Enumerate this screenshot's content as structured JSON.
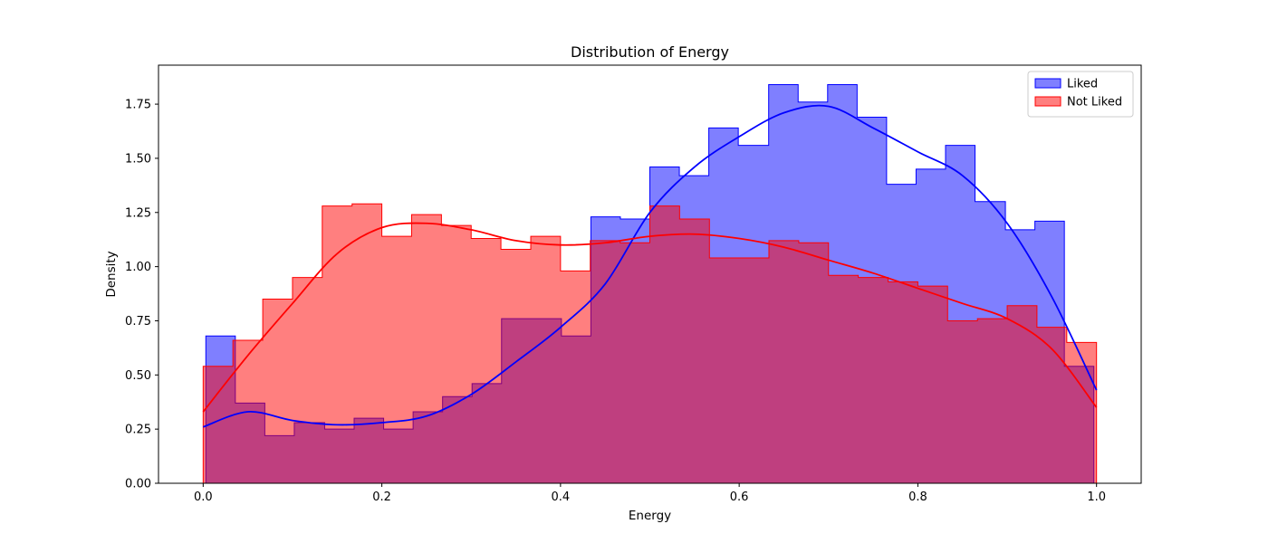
{
  "chart_data": {
    "type": "histogram",
    "title": "Distribution of Energy",
    "xlabel": "Energy",
    "ylabel": "Density",
    "xlim": [
      -0.05,
      1.05
    ],
    "ylim": [
      0,
      1.93
    ],
    "xticks": [
      0.0,
      0.2,
      0.4,
      0.6,
      0.8,
      1.0
    ],
    "xtick_labels": [
      "0.0",
      "0.2",
      "0.4",
      "0.6",
      "0.8",
      "1.0"
    ],
    "yticks": [
      0.0,
      0.25,
      0.5,
      0.75,
      1.0,
      1.25,
      1.5,
      1.75
    ],
    "ytick_labels": [
      "0.00",
      "0.25",
      "0.50",
      "0.75",
      "1.00",
      "1.25",
      "1.50",
      "1.75"
    ],
    "grid": false,
    "legend_position": "top-right",
    "series": [
      {
        "name": "Liked",
        "color": "#0000ff",
        "fill_opacity": 0.5,
        "bin_edges": [
          0.003,
          0.036,
          0.069,
          0.102,
          0.136,
          0.169,
          0.202,
          0.235,
          0.268,
          0.301,
          0.334,
          0.367,
          0.401,
          0.434,
          0.467,
          0.5,
          0.533,
          0.566,
          0.599,
          0.633,
          0.666,
          0.699,
          0.732,
          0.765,
          0.798,
          0.831,
          0.864,
          0.898,
          0.931,
          0.964,
          0.997
        ],
        "density": [
          0.68,
          0.37,
          0.22,
          0.28,
          0.25,
          0.3,
          0.25,
          0.33,
          0.4,
          0.46,
          0.76,
          0.76,
          0.68,
          1.23,
          1.22,
          1.46,
          1.42,
          1.64,
          1.56,
          1.84,
          1.76,
          1.84,
          1.69,
          1.38,
          1.45,
          1.56,
          1.3,
          1.17,
          1.21,
          0.54
        ],
        "kde_x": [
          0.0,
          0.05,
          0.1,
          0.15,
          0.2,
          0.25,
          0.3,
          0.35,
          0.4,
          0.45,
          0.5,
          0.55,
          0.6,
          0.65,
          0.7,
          0.75,
          0.8,
          0.85,
          0.9,
          0.95,
          1.0
        ],
        "kde_y": [
          0.26,
          0.33,
          0.29,
          0.27,
          0.28,
          0.31,
          0.41,
          0.56,
          0.72,
          0.92,
          1.25,
          1.46,
          1.6,
          1.71,
          1.74,
          1.64,
          1.53,
          1.42,
          1.2,
          0.86,
          0.43
        ]
      },
      {
        "name": "Not Liked",
        "color": "#ff0000",
        "fill_opacity": 0.5,
        "bin_edges": [
          0.0,
          0.0333,
          0.0667,
          0.1,
          0.1333,
          0.1667,
          0.2,
          0.2333,
          0.2667,
          0.3,
          0.3333,
          0.3667,
          0.4,
          0.4333,
          0.4667,
          0.5,
          0.5333,
          0.5667,
          0.6,
          0.6333,
          0.6667,
          0.7,
          0.7333,
          0.7667,
          0.8,
          0.8333,
          0.8667,
          0.9,
          0.9333,
          0.9667,
          1.0
        ],
        "density": [
          0.54,
          0.66,
          0.85,
          0.95,
          1.28,
          1.29,
          1.14,
          1.24,
          1.19,
          1.13,
          1.08,
          1.14,
          0.98,
          1.12,
          1.11,
          1.28,
          1.22,
          1.04,
          1.04,
          1.12,
          1.11,
          0.96,
          0.95,
          0.93,
          0.91,
          0.75,
          0.76,
          0.82,
          0.72,
          0.65
        ],
        "kde_x": [
          0.0,
          0.05,
          0.1,
          0.15,
          0.2,
          0.25,
          0.3,
          0.35,
          0.4,
          0.45,
          0.5,
          0.55,
          0.6,
          0.65,
          0.7,
          0.75,
          0.8,
          0.85,
          0.9,
          0.95,
          1.0
        ],
        "kde_y": [
          0.33,
          0.59,
          0.83,
          1.06,
          1.18,
          1.2,
          1.17,
          1.12,
          1.1,
          1.11,
          1.14,
          1.15,
          1.13,
          1.09,
          1.03,
          0.97,
          0.9,
          0.83,
          0.76,
          0.62,
          0.35
        ]
      }
    ]
  }
}
